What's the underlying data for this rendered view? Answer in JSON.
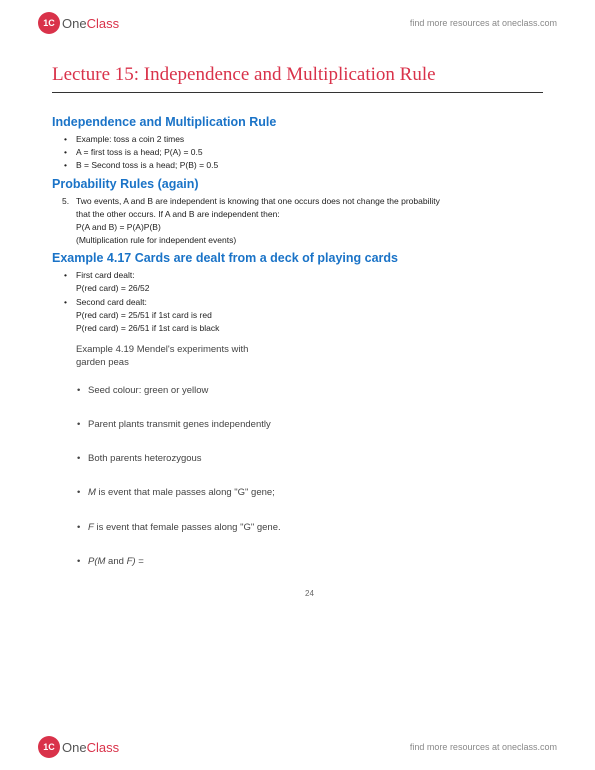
{
  "header": {
    "logo_badge": "1C",
    "logo_one": "One",
    "logo_class": "Class",
    "link": "find more resources at oneclass.com"
  },
  "footer": {
    "logo_badge": "1C",
    "logo_one": "One",
    "logo_class": "Class",
    "link": "find more resources at oneclass.com"
  },
  "title": "Lecture 15: Independence and Multiplication Rule",
  "section1": {
    "heading": "Independence and Multiplication Rule",
    "items": [
      "Example: toss a coin 2 times",
      "A = first toss is a head; P(A) = 0.5",
      "B = Second toss is a head; P(B) = 0.5"
    ]
  },
  "section2": {
    "heading": "Probability Rules (again)",
    "num": "5.",
    "line1": "Two events, A and B are independent is knowing that one occurs does not change the probability",
    "line2": "that the other occurs. If A and B are independent then:",
    "line3": "P(A and B) = P(A)P(B)",
    "line4": "(Multiplication rule for independent events)"
  },
  "section3": {
    "heading": "Example 4.17 Cards are dealt from a deck of playing cards",
    "b1": "First card dealt:",
    "b1a": "P(red card) = 26/52",
    "b2": "Second card dealt:",
    "b2a": "P(red card) = 25/51 if 1st card is red",
    "b2b": "P(red card) = 26/51 if 1st card is black"
  },
  "mendel": {
    "title1": "Example 4.19 Mendel's experiments with",
    "title2": "garden peas",
    "items": [
      "Seed colour: green or yellow",
      "Parent plants transmit genes independently",
      "Both parents heterozygous"
    ],
    "i4a": "M",
    "i4b": " is event that male passes along \"G\" gene;",
    "i5a": "F",
    "i5b": " is event that female passes along \"G\" gene.",
    "i6a": "P(M",
    "i6b": " and ",
    "i6c": "F) ="
  },
  "page_number": "24"
}
